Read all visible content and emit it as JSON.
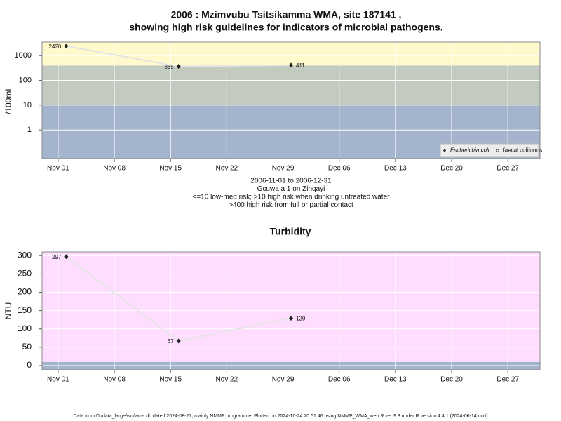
{
  "chart_data": [
    {
      "type": "line",
      "title": [
        "2006 : Mzimvubu Tsitsikamma WMA, site 187141 ,",
        "showing high risk guidelines for indicators of microbial pathogens."
      ],
      "y_label": "/100mL",
      "x": [
        "2006-11-02",
        "2006-11-16",
        "2006-11-30"
      ],
      "series": [
        {
          "name": "Escherichia coli",
          "color": "#222222",
          "marker": "diamond",
          "values": [
            2420,
            365,
            411
          ]
        },
        {
          "name": "faecal coliforms",
          "color": "#222222",
          "marker": "circle",
          "values": [
            null,
            null,
            null
          ]
        }
      ],
      "line_color": "#e4e4e4",
      "log_scale": true,
      "ylim": [
        0.07,
        3500
      ],
      "yticks": [
        1,
        10,
        100,
        1000
      ],
      "xlim": [
        "2006-10-30",
        "2006-12-31"
      ],
      "xticks": [
        {
          "value": "2006-11-01",
          "label": "Nov 01"
        },
        {
          "value": "2006-11-08",
          "label": "Nov 08"
        },
        {
          "value": "2006-11-15",
          "label": "Nov 15"
        },
        {
          "value": "2006-11-22",
          "label": "Nov 22"
        },
        {
          "value": "2006-11-29",
          "label": "Nov 29"
        },
        {
          "value": "2006-12-06",
          "label": "Dec 06"
        },
        {
          "value": "2006-12-13",
          "label": "Dec 13"
        },
        {
          "value": "2006-12-20",
          "label": "Dec 20"
        },
        {
          "value": "2006-12-27",
          "label": "Dec 27"
        }
      ],
      "grid": true,
      "band_breaks": [
        10,
        400
      ],
      "band_colors": [
        "#a3b4cc",
        "#c3cbc0",
        "#fff9cc"
      ],
      "legend": "bottomright",
      "notes": [
        "2006-11-01 to 2006-12-31",
        "Gcuwa a 1 on Zinqayi",
        "<=10 low-med risk; >10 high risk when drinking untreated water",
        ">400 high risk from full or partial contact"
      ]
    },
    {
      "type": "line",
      "title": "Turbidity",
      "y_label": "NTU",
      "x": [
        "2006-11-02",
        "2006-11-16",
        "2006-11-30"
      ],
      "series": [
        {
          "name": "Turbidity",
          "color": "#222222",
          "marker": "diamond",
          "values": [
            297,
            67,
            129
          ]
        }
      ],
      "line_color": "#e4e4e4",
      "log_scale": false,
      "ylim": [
        -11.5,
        310
      ],
      "yticks": [
        0,
        50,
        100,
        150,
        200,
        250,
        300
      ],
      "xlim": [
        "2006-10-30",
        "2006-12-31"
      ],
      "xticks": [
        {
          "value": "2006-11-01",
          "label": "Nov 01"
        },
        {
          "value": "2006-11-08",
          "label": "Nov 08"
        },
        {
          "value": "2006-11-15",
          "label": "Nov 15"
        },
        {
          "value": "2006-11-22",
          "label": "Nov 22"
        },
        {
          "value": "2006-11-29",
          "label": "Nov 29"
        },
        {
          "value": "2006-12-06",
          "label": "Dec 06"
        },
        {
          "value": "2006-12-13",
          "label": "Dec 13"
        },
        {
          "value": "2006-12-20",
          "label": "Dec 20"
        },
        {
          "value": "2006-12-27",
          "label": "Dec 27"
        }
      ],
      "grid": true,
      "band_breaks": [
        10
      ],
      "band_colors": [
        "#a3b4cc",
        "#ffddff"
      ]
    }
  ],
  "footer": "Data from D:/data_large/wq/wms.db dated 2024-08-27, mainly NMMP programme. Plotted on 2024-10-24 20:51:46 using NMMP_WMA_web.R ver 9.3 under R version 4.4.1 (2024-06-14 ucrt)"
}
